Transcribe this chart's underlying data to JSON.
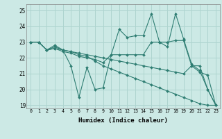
{
  "xlabel": "Humidex (Indice chaleur)",
  "ylabel": "",
  "bg_color": "#cce9e5",
  "grid_color": "#aed4cf",
  "line_color": "#2e7d72",
  "xlim": [
    -0.5,
    23.5
  ],
  "ylim": [
    18.8,
    25.4
  ],
  "yticks": [
    19,
    20,
    21,
    22,
    23,
    24,
    25
  ],
  "xticks": [
    0,
    1,
    2,
    3,
    4,
    5,
    6,
    7,
    8,
    9,
    10,
    11,
    12,
    13,
    14,
    15,
    16,
    17,
    18,
    19,
    20,
    21,
    22,
    23
  ],
  "series": [
    [
      23.0,
      23.0,
      22.5,
      22.8,
      22.5,
      21.5,
      19.5,
      21.4,
      20.0,
      20.1,
      22.2,
      23.8,
      23.3,
      23.4,
      23.4,
      24.8,
      23.0,
      22.7,
      24.8,
      23.2,
      21.6,
      21.2,
      20.0,
      19.0
    ],
    [
      23.0,
      23.0,
      22.5,
      22.6,
      22.4,
      22.3,
      22.1,
      22.0,
      21.9,
      21.7,
      22.2,
      22.2,
      22.2,
      22.2,
      22.2,
      23.0,
      23.0,
      23.0,
      23.1,
      23.1,
      21.5,
      21.1,
      20.9,
      19.0
    ],
    [
      23.0,
      23.0,
      22.5,
      22.7,
      22.5,
      22.4,
      22.3,
      22.2,
      22.1,
      22.0,
      21.9,
      21.8,
      21.7,
      21.6,
      21.5,
      21.4,
      21.3,
      21.2,
      21.1,
      21.0,
      21.5,
      21.5,
      20.0,
      19.0
    ],
    [
      23.0,
      23.0,
      22.5,
      22.6,
      22.5,
      22.4,
      22.2,
      22.1,
      21.8,
      21.5,
      21.3,
      21.1,
      20.9,
      20.7,
      20.5,
      20.3,
      20.1,
      19.9,
      19.7,
      19.5,
      19.3,
      19.1,
      19.0,
      19.0
    ]
  ]
}
